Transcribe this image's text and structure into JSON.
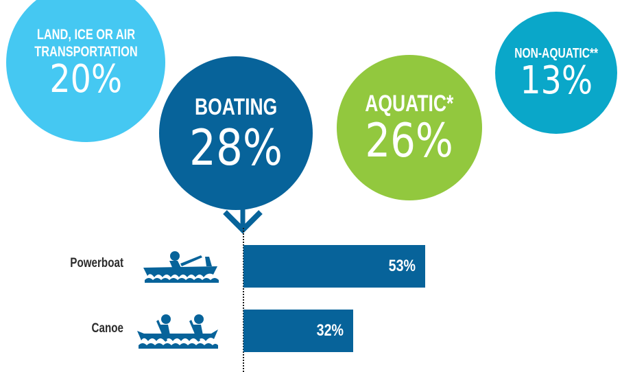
{
  "categories_overview": [
    {
      "id": "land",
      "label": "LAND, ICE OR AIR\nTRANSPORTATION",
      "value": "20%",
      "color": "#45c8f2"
    },
    {
      "id": "boating",
      "label": "BOATING",
      "value": "28%",
      "color": "#07639a"
    },
    {
      "id": "aquatic",
      "label": "AQUATIC",
      "label_mark": "*",
      "value": "26%",
      "color": "#92c83e"
    },
    {
      "id": "nonaquatic",
      "label": "NON-AQUATIC",
      "label_mark": "**",
      "value": "13%",
      "color": "#0aa7c9"
    }
  ],
  "chart_data": [
    {
      "type": "bubble",
      "categories": [
        "LAND, ICE OR AIR TRANSPORTATION",
        "BOATING",
        "AQUATIC*",
        "NON-AQUATIC**"
      ],
      "values": [
        20,
        28,
        26,
        13
      ]
    },
    {
      "type": "bar",
      "orientation": "horizontal",
      "categories": [
        "Powerboat",
        "Canoe"
      ],
      "values": [
        53,
        32
      ],
      "value_labels": [
        "53%",
        "32%"
      ],
      "icons": [
        "powerboat-icon",
        "canoe-icon"
      ],
      "bar_color": "#07639a",
      "xlim": [
        0,
        100
      ]
    }
  ]
}
